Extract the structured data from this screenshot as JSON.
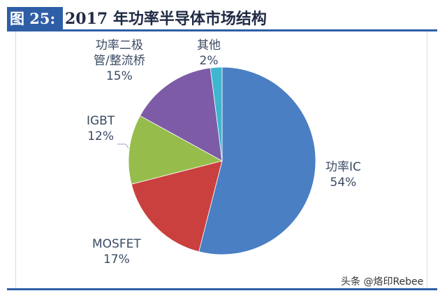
{
  "header": {
    "figure_label": "图 25:",
    "title": "2017 年功率半导体市场结构"
  },
  "colors": {
    "accent": "#2e5ea6",
    "power_ic": "#4a7fc4",
    "mosfet": "#c9403e",
    "igbt": "#96bd4c",
    "diode_rectifier": "#7d5ba6",
    "other": "#3fb6cf"
  },
  "labels": {
    "power_ic": {
      "name": "功率IC",
      "pct": "54%"
    },
    "mosfet": {
      "name": "MOSFET",
      "pct": "17%"
    },
    "igbt": {
      "name": "IGBT",
      "pct": "12%"
    },
    "diode_rectifier": {
      "name_line1": "功率二极",
      "name_line2": "管/整流桥",
      "pct": "15%"
    },
    "other": {
      "name": "其他",
      "pct": "2%"
    }
  },
  "watermark": "头条 @烙印Rebee",
  "chart_data": {
    "type": "pie",
    "title": "2017 年功率半导体市场结构",
    "figure_number": "图 25",
    "categories": [
      "功率IC",
      "MOSFET",
      "IGBT",
      "功率二极管/整流桥",
      "其他"
    ],
    "values": [
      54,
      17,
      12,
      15,
      2
    ],
    "unit": "%",
    "start_angle": "12 o'clock",
    "direction": "clockwise",
    "colors": [
      "#4a7fc4",
      "#c9403e",
      "#96bd4c",
      "#7d5ba6",
      "#3fb6cf"
    ],
    "legend": "none (data labels with category name and percentage)"
  }
}
